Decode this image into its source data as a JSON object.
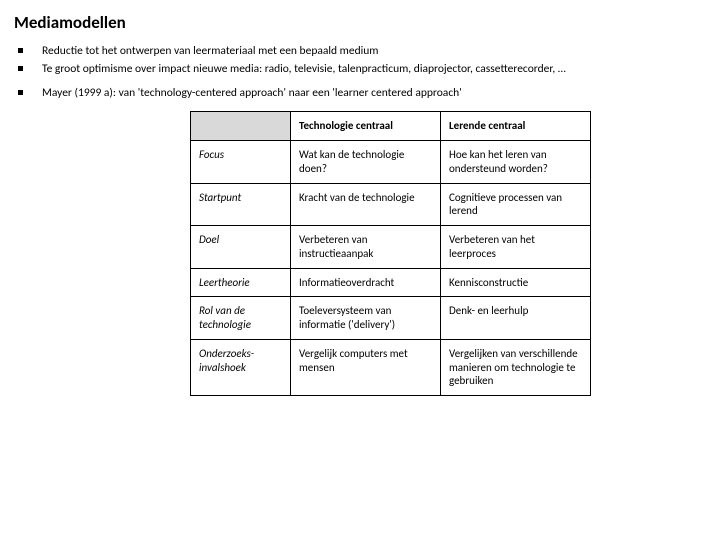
{
  "title": "Mediamodellen",
  "bullets_a": [
    "Reductie tot het ontwerpen van leermateriaal met een bepaald medium",
    "Te groot optimisme over impact nieuwe media: radio, televisie, talenpracticum, diaprojector, cassetterecorder, …"
  ],
  "bullets_b": [
    "Mayer (1999 a): van 'technology-centered approach' naar een 'learner centered approach'"
  ],
  "table": {
    "header_blank_bg": "#d9d9d9",
    "col2_header": "Technologie centraal",
    "col3_header": "Lerende centraal",
    "rows": [
      {
        "label": "Focus",
        "c2": "Wat kan de technologie doen?",
        "c3": "Hoe kan het leren van ondersteund worden?"
      },
      {
        "label": "Startpunt",
        "c2": "Kracht van de technologie",
        "c3": "Cognitieve processen van lerend"
      },
      {
        "label": "Doel",
        "c2": "Verbeteren van instructieaanpak",
        "c3": "Verbeteren van het leerproces"
      },
      {
        "label": "Leertheorie",
        "c2": "Informatieoverdracht",
        "c3": "Kennisconstructie"
      },
      {
        "label": "Rol van de technologie",
        "c2": "Toeleversysteem van informatie ('delivery')",
        "c3": "Denk- en leerhulp"
      },
      {
        "label": "Onderzoeks-invalshoek",
        "c2": "Vergelijk computers met mensen",
        "c3": "Vergelijken van verschillende manieren om technologie te gebruiken"
      }
    ]
  },
  "colors": {
    "page_bg": "#ffffff",
    "text": "#000000",
    "table_border": "#000000"
  },
  "fonts": {
    "title_size_pt": 17,
    "body_size_pt": 11.5,
    "table_size_pt": 11
  }
}
